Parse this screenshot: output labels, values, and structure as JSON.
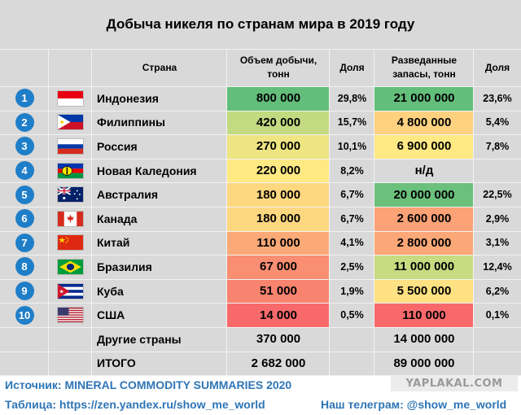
{
  "title": "Добыча никеля по странам мира в 2019 году",
  "headers": {
    "country": "Страна",
    "production": "Объем добычи,\nтонн",
    "production_share": "Доля",
    "reserves": "Разведанные\nзапасы, тонн",
    "reserves_share": "Доля"
  },
  "rows": [
    {
      "rank": "1",
      "flag": "indonesia-flag",
      "country": "Индонезия",
      "production": "800 000",
      "production_share": "29,8%",
      "reserves": "21 000 000",
      "reserves_share": "23,6%",
      "prod_color": "#63be7b",
      "res_color": "#63be7b"
    },
    {
      "rank": "2",
      "flag": "philippines-flag",
      "country": "Филиппины",
      "production": "420 000",
      "production_share": "15,7%",
      "reserves": "4 800 000",
      "reserves_share": "5,4%",
      "prod_color": "#c2da80",
      "res_color": "#fdd17f"
    },
    {
      "rank": "3",
      "flag": "russia-flag",
      "country": "Россия",
      "production": "270 000",
      "production_share": "10,1%",
      "reserves": "6 900 000",
      "reserves_share": "7,8%",
      "prod_color": "#eee582",
      "res_color": "#fee983"
    },
    {
      "rank": "4",
      "flag": "new-caledonia-flag",
      "country": "Новая Каледония",
      "production": "220 000",
      "production_share": "8,2%",
      "reserves": "н/д",
      "reserves_share": "",
      "prod_color": "#fee983",
      "res_color": ""
    },
    {
      "rank": "5",
      "flag": "australia-flag",
      "country": "Австралия",
      "production": "180 000",
      "production_share": "6,7%",
      "reserves": "20 000 000",
      "reserves_share": "22,5%",
      "prod_color": "#fed880",
      "res_color": "#6bc07c"
    },
    {
      "rank": "6",
      "flag": "canada-flag",
      "country": "Канада",
      "production": "180 000",
      "production_share": "6,7%",
      "reserves": "2 600 000",
      "reserves_share": "2,9%",
      "prod_color": "#fed880",
      "res_color": "#fba276"
    },
    {
      "rank": "7",
      "flag": "china-flag",
      "country": "Китай",
      "production": "110 000",
      "production_share": "4,1%",
      "reserves": "2 800 000",
      "reserves_share": "3,1%",
      "prod_color": "#fbaa77",
      "res_color": "#fba777"
    },
    {
      "rank": "8",
      "flag": "brazil-flag",
      "country": "Бразилия",
      "production": "67 000",
      "production_share": "2,5%",
      "reserves": "11 000 000",
      "reserves_share": "12,4%",
      "prod_color": "#f98e72",
      "res_color": "#c7db81"
    },
    {
      "rank": "9",
      "flag": "cuba-flag",
      "country": "Куба",
      "production": "51 000",
      "production_share": "1,9%",
      "reserves": "5 500 000",
      "reserves_share": "6,2%",
      "prod_color": "#f8836f",
      "res_color": "#fee182"
    },
    {
      "rank": "10",
      "flag": "usa-flag",
      "country": "США",
      "production": "14 000",
      "production_share": "0,5%",
      "reserves": "110 000",
      "reserves_share": "0,1%",
      "prod_color": "#f8696b",
      "res_color": "#f8696b"
    }
  ],
  "other": {
    "label": "Другие страны",
    "production": "370 000",
    "reserves": "14 000 000"
  },
  "total": {
    "label": "ИТОГО",
    "production": "2 682 000",
    "reserves": "89 000 000"
  },
  "footer": {
    "source": "Источник: MINERAL COMMODITY SUMMARIES 2020",
    "table": "Таблица: https://zen.yandex.ru/show_me_world",
    "telegram": "Наш телеграм: @show_me_world"
  },
  "watermark": "YAPLAKAL.COM"
}
